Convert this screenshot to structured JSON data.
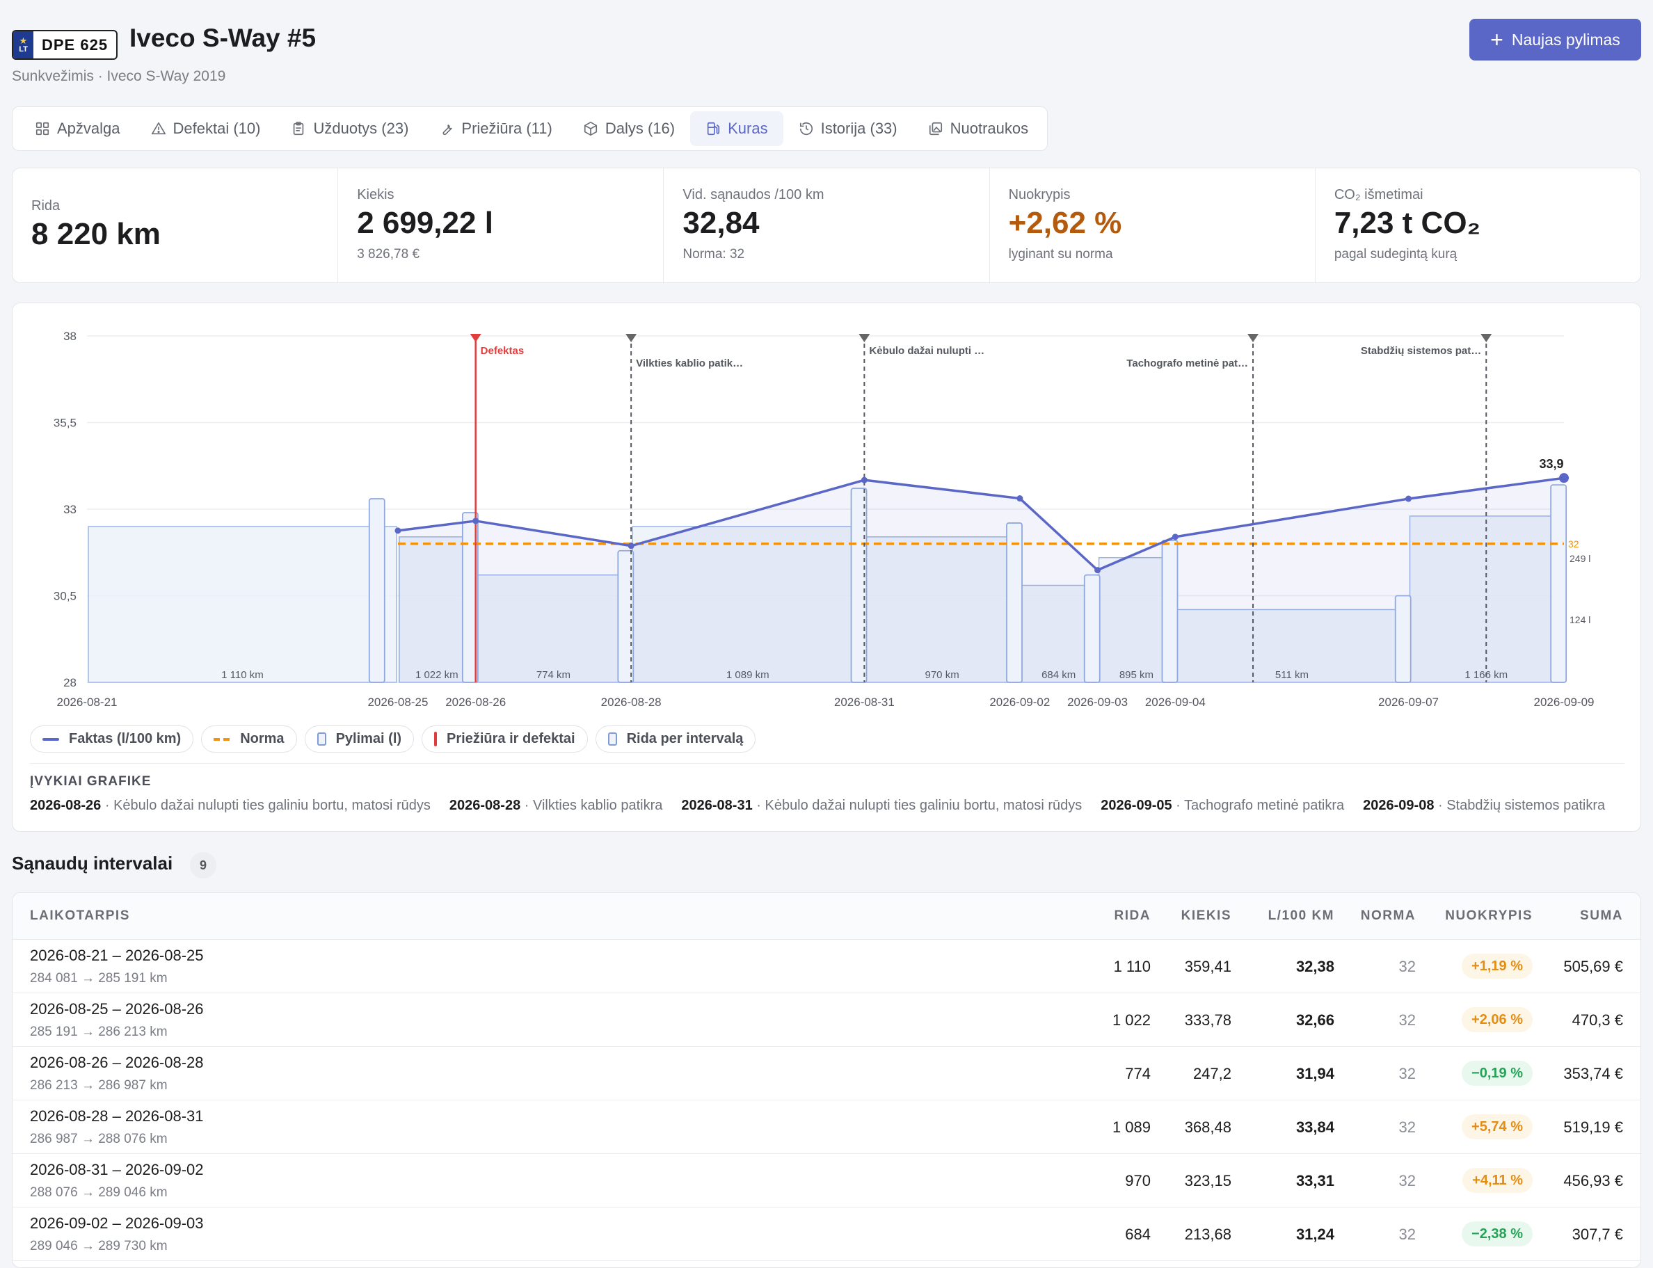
{
  "vehicle": {
    "plate_country": "LT",
    "plate_number": "DPE 625",
    "title": "Iveco S-Way #5",
    "subtitle": "Sunkvežimis · Iveco S-Way 2019"
  },
  "actions": {
    "new_fill_label": "Naujas pylimas"
  },
  "tabs": [
    {
      "label": "Apžvalga",
      "icon": "grid-icon"
    },
    {
      "label": "Defektai (10)",
      "icon": "warning-icon"
    },
    {
      "label": "Užduotys (23)",
      "icon": "clipboard-icon"
    },
    {
      "label": "Priežiūra (11)",
      "icon": "wrench-icon"
    },
    {
      "label": "Dalys (16)",
      "icon": "box-icon"
    },
    {
      "label": "Kuras",
      "icon": "fuel-icon",
      "active": true
    },
    {
      "label": "Istorija (33)",
      "icon": "history-icon"
    },
    {
      "label": "Nuotraukos",
      "icon": "images-icon"
    }
  ],
  "stats": {
    "mileage": {
      "label": "Rida",
      "value": "8 220 km"
    },
    "amount": {
      "label": "Kiekis",
      "value": "2 699,22 l",
      "sub": "3 826,78 €"
    },
    "avg": {
      "label": "Vid. sąnaudos /100 km",
      "value": "32,84",
      "sub": "Norma: 32"
    },
    "deviation": {
      "label": "Nuokrypis",
      "value": "+2,62 %",
      "sub": "lyginant su norma"
    },
    "co2": {
      "label": "CO₂ išmetimai",
      "value": "7,23 t CO₂",
      "sub": "pagal sudegintą kurą"
    }
  },
  "colors": {
    "accent": "#5a67c6",
    "norm": "#f0930f",
    "defect": "#e23d3d",
    "fill_bar": "#7f9bd8",
    "warn": "#e58c12",
    "good": "#24a357"
  },
  "chart_data": {
    "type": "line",
    "y_ticks": [
      "38",
      "35,5",
      "33",
      "30,5",
      "28"
    ],
    "ylim": [
      28,
      38
    ],
    "x_tick_labels": [
      "2026-08-21",
      "2026-08-25",
      "2026-08-26",
      "2026-08-28",
      "2026-08-31",
      "2026-09-02",
      "2026-09-03",
      "2026-09-04",
      "2026-09-07",
      "2026-09-09"
    ],
    "norm": 32,
    "norm_label": "32",
    "series": [
      {
        "name": "Faktas (l/100 km)",
        "x": [
          "2026-08-25",
          "2026-08-26",
          "2026-08-28",
          "2026-08-31",
          "2026-09-02",
          "2026-09-03",
          "2026-09-04",
          "2026-09-07",
          "2026-09-09"
        ],
        "values": [
          32.38,
          32.66,
          31.94,
          33.84,
          33.31,
          31.24,
          32.2,
          33.3,
          33.9
        ]
      }
    ],
    "last_value_label": "33,9",
    "mileage_intervals": [
      {
        "from": "2026-08-21",
        "to": "2026-08-25",
        "label": "1 110 km",
        "level": 32.5
      },
      {
        "from": "2026-08-25",
        "to": "2026-08-26",
        "label": "1 022 km",
        "level": 32.2
      },
      {
        "from": "2026-08-26",
        "to": "2026-08-28",
        "label": "774 km",
        "level": 31.1
      },
      {
        "from": "2026-08-28",
        "to": "2026-08-31",
        "label": "1 089 km",
        "level": 32.5
      },
      {
        "from": "2026-08-31",
        "to": "2026-09-02",
        "label": "970 km",
        "level": 32.2
      },
      {
        "from": "2026-09-02",
        "to": "2026-09-03",
        "label": "684 km",
        "level": 30.8
      },
      {
        "from": "2026-09-03",
        "to": "2026-09-04",
        "label": "895 km",
        "level": 31.6
      },
      {
        "from": "2026-09-04",
        "to": "2026-09-07",
        "label": "511 km",
        "level": 30.1
      },
      {
        "from": "2026-09-07",
        "to": "2026-09-09",
        "label": "1 166 km",
        "level": 32.8
      }
    ],
    "fills": [
      {
        "x": 3.73,
        "level": 33.3
      },
      {
        "x": 4.93,
        "level": 32.9
      },
      {
        "x": 6.93,
        "level": 31.8
      },
      {
        "x": 9.93,
        "level": 33.6
      },
      {
        "x": 11.93,
        "level": 32.6
      },
      {
        "x": 12.93,
        "level": 31.1
      },
      {
        "x": 13.93,
        "level": 32.1
      },
      {
        "x": 16.93,
        "level": 30.5
      },
      {
        "x": 18.93,
        "level": 33.7
      }
    ],
    "fill_side_labels": [
      "249 l",
      "124 l"
    ],
    "events": [
      {
        "x": 5.0,
        "label": "Defektas",
        "kind": "defect"
      },
      {
        "x": 7.0,
        "label": "Vilkties kablio patik…",
        "kind": "maintenance"
      },
      {
        "x": 10.0,
        "label": "Kėbulo dažai nulupti …",
        "kind": "maintenance"
      },
      {
        "x": 15.0,
        "label": "Tachografo metinė pat…",
        "kind": "maintenance"
      },
      {
        "x": 18.0,
        "label": "Stabdžių sistemos pat…",
        "kind": "maintenance"
      }
    ],
    "legend": [
      "Faktas (l/100 km)",
      "Norma",
      "Pylimai (l)",
      "Priežiūra ir defektai",
      "Rida per intervalą"
    ]
  },
  "events_section": {
    "title": "ĮVYKIAI GRAFIKE",
    "items": [
      {
        "date": "2026-08-26",
        "text": " · Kėbulo dažai nulupti ties galiniu bortu, matosi rūdys"
      },
      {
        "date": "2026-08-28",
        "text": " · Vilkties kablio patikra"
      },
      {
        "date": "2026-08-31",
        "text": " · Kėbulo dažai nulupti ties galiniu bortu, matosi rūdys"
      },
      {
        "date": "2026-09-05",
        "text": " · Tachografo metinė patikra"
      },
      {
        "date": "2026-09-08",
        "text": " · Stabdžių sistemos patikra"
      }
    ]
  },
  "intervals": {
    "title": "Sąnaudų intervalai",
    "count": "9",
    "headers": {
      "period": "LAIKOTARPIS",
      "mileage": "RIDA",
      "amount": "KIEKIS",
      "per100": "L/100 KM",
      "norm": "NORMA",
      "deviation": "NUOKRYPIS",
      "sum": "SUMA"
    },
    "rows": [
      {
        "period": "2026-08-21 – 2026-08-25",
        "km": "284 081 → 285 191 km",
        "mileage": "1 110",
        "amount": "359,41",
        "per100": "32,38",
        "norm": "32",
        "deviation": "+1,19 %",
        "status": "warn",
        "sum": "505,69 €"
      },
      {
        "period": "2026-08-25 – 2026-08-26",
        "km": "285 191 → 286 213 km",
        "mileage": "1 022",
        "amount": "333,78",
        "per100": "32,66",
        "norm": "32",
        "deviation": "+2,06 %",
        "status": "warn",
        "sum": "470,3 €"
      },
      {
        "period": "2026-08-26 – 2026-08-28",
        "km": "286 213 → 286 987 km",
        "mileage": "774",
        "amount": "247,2",
        "per100": "31,94",
        "norm": "32",
        "deviation": "−0,19 %",
        "status": "good",
        "sum": "353,74 €"
      },
      {
        "period": "2026-08-28 – 2026-08-31",
        "km": "286 987 → 288 076 km",
        "mileage": "1 089",
        "amount": "368,48",
        "per100": "33,84",
        "norm": "32",
        "deviation": "+5,74 %",
        "status": "warn",
        "sum": "519,19 €"
      },
      {
        "period": "2026-08-31 – 2026-09-02",
        "km": "288 076 → 289 046 km",
        "mileage": "970",
        "amount": "323,15",
        "per100": "33,31",
        "norm": "32",
        "deviation": "+4,11 %",
        "status": "warn",
        "sum": "456,93 €"
      },
      {
        "period": "2026-09-02 – 2026-09-03",
        "km": "289 046 → 289 730 km",
        "mileage": "684",
        "amount": "213,68",
        "per100": "31,24",
        "norm": "32",
        "deviation": "−2,38 %",
        "status": "good",
        "sum": "307,7 €"
      }
    ]
  }
}
